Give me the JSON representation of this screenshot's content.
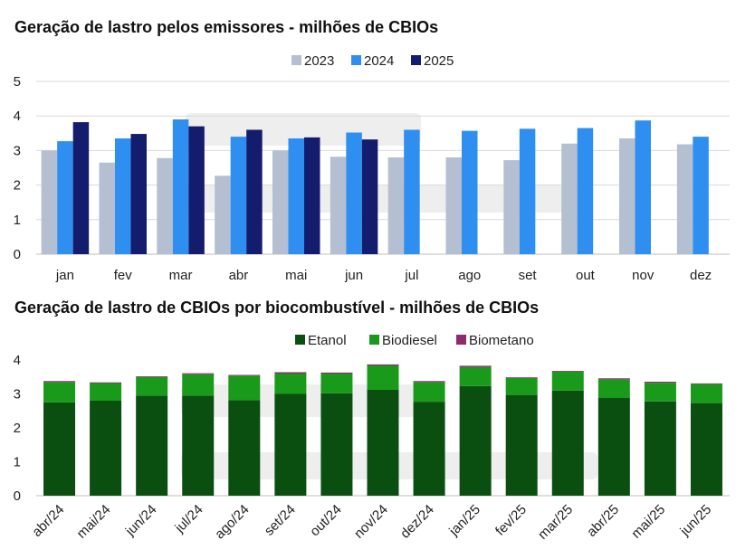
{
  "chart_data": [
    {
      "type": "bar",
      "title": "Geração de lastro pelos emissores - milhões de CBIOs",
      "categories": [
        "jan",
        "fev",
        "mar",
        "abr",
        "mai",
        "jun",
        "jul",
        "ago",
        "set",
        "out",
        "nov",
        "dez"
      ],
      "series": [
        {
          "name": "2023",
          "color": "#b4bfd2",
          "values": [
            3.0,
            2.65,
            2.78,
            2.27,
            3.0,
            2.82,
            2.8,
            2.8,
            2.72,
            3.2,
            3.35,
            3.18
          ]
        },
        {
          "name": "2024",
          "color": "#2e8ff0",
          "values": [
            3.27,
            3.35,
            3.9,
            3.4,
            3.35,
            3.52,
            3.6,
            3.57,
            3.63,
            3.65,
            3.87,
            3.4
          ]
        },
        {
          "name": "2025",
          "color": "#141c6e",
          "values": [
            3.82,
            3.48,
            3.7,
            3.6,
            3.38,
            3.32,
            null,
            null,
            null,
            null,
            null,
            null
          ]
        }
      ],
      "ylim": [
        0,
        5
      ],
      "yticks": [
        0,
        1,
        2,
        3,
        4,
        5
      ],
      "xlabel": "",
      "ylabel": "",
      "legend": "top-center",
      "grid": true
    },
    {
      "type": "bar",
      "stacked": true,
      "title": "Geração de lastro de CBIOs por biocombustível - milhões de CBIOs",
      "categories": [
        "abr/24",
        "mai/24",
        "jun/24",
        "jul/24",
        "ago/24",
        "set/24",
        "out/24",
        "nov/24",
        "dez/24",
        "jan/25",
        "fev/25",
        "mar/25",
        "abr/25",
        "mai/25",
        "jun/25"
      ],
      "series": [
        {
          "name": "Etanol",
          "color": "#0a4f10",
          "values": [
            2.75,
            2.8,
            2.95,
            2.95,
            2.82,
            3.0,
            3.02,
            3.12,
            2.77,
            3.23,
            2.97,
            3.1,
            2.88,
            2.78,
            2.73
          ]
        },
        {
          "name": "Biodiesel",
          "color": "#1a9a1a",
          "values": [
            0.6,
            0.53,
            0.55,
            0.63,
            0.72,
            0.6,
            0.58,
            0.72,
            0.58,
            0.56,
            0.5,
            0.56,
            0.55,
            0.55,
            0.56
          ]
        },
        {
          "name": "Biometano",
          "color": "#8e2b6e",
          "values": [
            0.03,
            0.01,
            0.02,
            0.03,
            0.02,
            0.04,
            0.03,
            0.03,
            0.03,
            0.04,
            0.02,
            0.02,
            0.03,
            0.03,
            0.02
          ]
        }
      ],
      "ylim": [
        0,
        4
      ],
      "yticks": [
        0,
        1,
        2,
        3,
        4
      ],
      "xlabel": "",
      "ylabel": "",
      "legend": "top-center",
      "grid": false
    }
  ]
}
